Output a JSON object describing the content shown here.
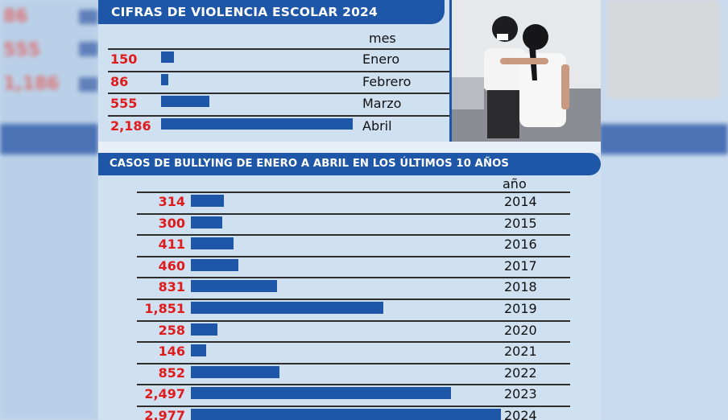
{
  "colors": {
    "accent": "#1f57a8",
    "number": "#e01b1b"
  },
  "chart_data": [
    {
      "type": "bar",
      "title": "CIFRAS DE VIOLENCIA ESCOLAR 2024",
      "category_header": "mes",
      "categories": [
        "Enero",
        "Febrero",
        "Marzo",
        "Abril"
      ],
      "values": [
        150,
        86,
        555,
        2186
      ],
      "value_labels": [
        "150",
        "86",
        "555",
        "2,186"
      ]
    },
    {
      "type": "bar",
      "title": "CASOS DE BULLYING DE ENERO A ABRIL EN LOS ÚLTIMOS 10 AÑOS",
      "category_header": "año",
      "categories": [
        "2014",
        "2015",
        "2016",
        "2017",
        "2018",
        "2019",
        "2020",
        "2021",
        "2022",
        "2023",
        "2024"
      ],
      "values": [
        314,
        300,
        411,
        460,
        831,
        1851,
        258,
        146,
        852,
        2497,
        2977
      ],
      "value_labels": [
        "314",
        "300",
        "411",
        "460",
        "831",
        "1,851",
        "258",
        "146",
        "852",
        "2,497",
        "2,977"
      ]
    }
  ]
}
